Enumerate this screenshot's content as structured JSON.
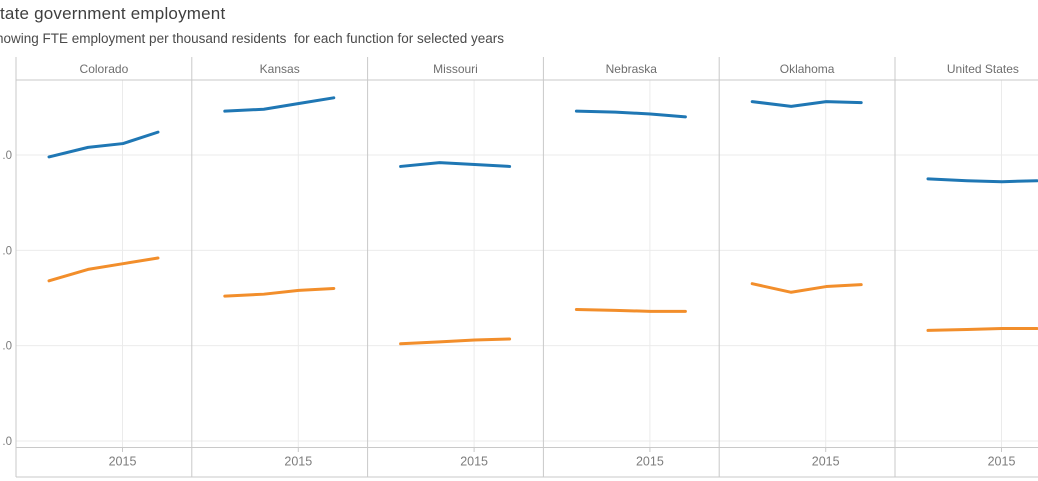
{
  "header": {
    "title": "tate government employment",
    "subtitle": "howing FTE employment per thousand residents  for each function for selected years"
  },
  "colors": {
    "line_blue": "#1f77b4",
    "line_orange": "#f28e2b",
    "grid": "#ebebeb",
    "border": "#c9c9c9",
    "header_text": "#6e6e6e",
    "tick_text": "#7d7d7d",
    "title_text": "#3f3f3f",
    "subtitle_text": "#4a4a4a"
  },
  "chart_data": {
    "type": "line",
    "layout": "small-multiples-columns",
    "title": "tate government employment",
    "subtitle": "howing FTE employment per thousand residents  for each function for selected years",
    "columns": [
      "Colorado",
      "Kansas",
      "Missouri",
      "Nebraska",
      "Oklahoma",
      "United States"
    ],
    "x_axis": {
      "tick_label": "2015",
      "ticks_per_panel": 1
    },
    "y_axis": {
      "tick_display_visible": [
        ".0",
        ".0",
        ".0",
        ".0"
      ],
      "ticks": [
        {
          "display": ".0",
          "value": 15
        },
        {
          "display": ".0",
          "value": 10
        },
        {
          "display": ".0",
          "value": 5
        },
        {
          "display": ".0",
          "value": 0
        }
      ],
      "ylim": [
        0,
        18.9
      ],
      "grid": true
    },
    "series": [
      {
        "id": "blue",
        "color": "#1f77b4"
      },
      {
        "id": "orange",
        "color": "#f28e2b"
      }
    ],
    "panels": [
      {
        "label": "Colorado",
        "series": {
          "blue": [
            14.9,
            15.4,
            15.6,
            16.2
          ],
          "orange": [
            8.4,
            9.0,
            9.3,
            9.6
          ]
        }
      },
      {
        "label": "Kansas",
        "series": {
          "blue": [
            17.3,
            17.4,
            17.7,
            18.0
          ],
          "orange": [
            7.6,
            7.7,
            7.9,
            8.0
          ]
        }
      },
      {
        "label": "Missouri",
        "series": {
          "blue": [
            14.4,
            14.6,
            14.5,
            14.4
          ],
          "orange": [
            5.1,
            5.2,
            5.3,
            5.35
          ]
        }
      },
      {
        "label": "Nebraska",
        "series": {
          "blue": [
            17.3,
            17.25,
            17.15,
            17.0
          ],
          "orange": [
            6.9,
            6.85,
            6.8,
            6.8
          ]
        }
      },
      {
        "label": "Oklahoma",
        "series": {
          "blue": [
            17.8,
            17.55,
            17.8,
            17.75
          ],
          "orange": [
            8.25,
            7.8,
            8.1,
            8.2
          ]
        }
      },
      {
        "label": "United States",
        "series": {
          "blue": [
            13.75,
            13.65,
            13.6,
            13.65
          ],
          "orange": [
            5.8,
            5.85,
            5.9,
            5.9
          ]
        }
      }
    ]
  }
}
